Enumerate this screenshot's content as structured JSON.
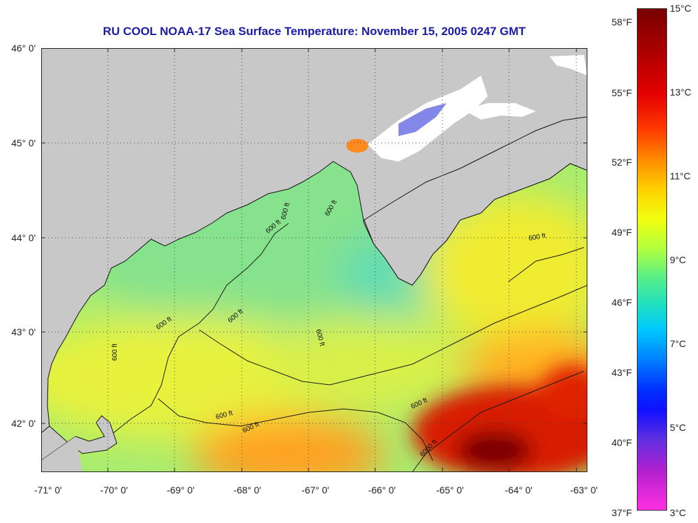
{
  "title": "RU COOL  NOAA-17  Sea Surface Temperature:  November 15, 2005 0247 GMT",
  "map": {
    "lat_labels": [
      "46° 0'",
      "45° 0'",
      "44° 0'",
      "43° 0'",
      "42° 0'"
    ],
    "lon_labels": [
      "-71° 0'",
      "-70° 0'",
      "-69° 0'",
      "-68° 0'",
      "-67° 0'",
      "-66° 0'",
      "-65° 0'",
      "-64° 0'",
      "-63° 0'"
    ],
    "contour_labels": [
      "600 ft",
      "600 ft",
      "600 ft",
      "600 ft",
      "600 ft",
      "600 ft",
      "600 ft",
      "600 ft",
      "600 ft",
      "600 ft",
      "600 ft",
      "6000 ft"
    ],
    "colors": {
      "land": "#c8c8c8",
      "cloud": "#ffffff",
      "water_cool": "#8fe68a",
      "water_mid": "#e6f23a",
      "water_warm": "#ff9a1a",
      "water_hot": "#c81000",
      "water_hottest": "#7a0000"
    }
  },
  "colorbar": {
    "fahrenheit_labels": [
      "58°F",
      "55°F",
      "52°F",
      "49°F",
      "46°F",
      "43°F",
      "40°F",
      "37°F"
    ],
    "celsius_labels": [
      "15°C",
      "13°C",
      "11°C",
      "9°C",
      "7°C",
      "5°C",
      "3°C"
    ]
  }
}
